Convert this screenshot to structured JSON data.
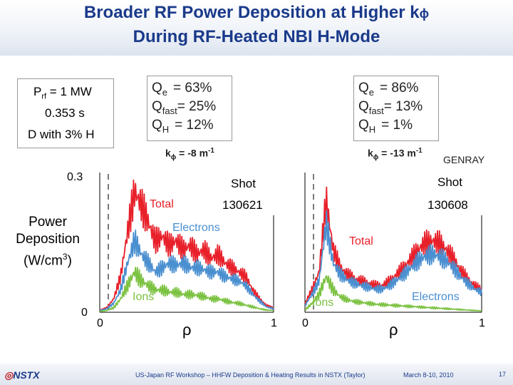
{
  "slide": {
    "title_line1": "Broader RF Power Deposition at Higher k",
    "title_phi": "ϕ",
    "title_line2": "During RF-Heated NBI H-Mode"
  },
  "params": {
    "prf_label": "P",
    "prf_sub": "rf",
    "prf_value": " = 1 MW",
    "time": "0.353 s",
    "plasma": "D with 3% H"
  },
  "panels": [
    {
      "fractions": [
        {
          "q": "Q",
          "sub": "e",
          "value": "=  63%"
        },
        {
          "q": "Q",
          "sub": "fast",
          "value": "=  25%"
        },
        {
          "q": "Q",
          "sub": "H",
          "value": "=  12%"
        }
      ],
      "kphi_label": "k",
      "kphi_sub": "ϕ",
      "kphi_value": " = -8 m",
      "kphi_exp": "-1",
      "shot_label": "Shot",
      "shot_number": "130621"
    },
    {
      "fractions": [
        {
          "q": "Q",
          "sub": "e",
          "value": "=  86%"
        },
        {
          "q": "Q",
          "sub": "fast",
          "value": "=  13%"
        },
        {
          "q": "Q",
          "sub": "H",
          "value": "=   1%"
        }
      ],
      "kphi_label": "k",
      "kphi_sub": "ϕ",
      "kphi_value": " = -13 m",
      "kphi_exp": "-1",
      "shot_label": "Shot",
      "shot_number": "130608"
    }
  ],
  "code_label": "GENRAY",
  "footer": {
    "logo": "NSTX",
    "center": "US-Japan RF Workshop – HHFW Deposition & Heating Results in NSTX (Taylor)",
    "date": "March 8-10, 2010",
    "page": "17"
  },
  "colors": {
    "title": "#1a3a8a",
    "total": "#e8202a",
    "electrons": "#4a8fd0",
    "ions": "#7cc242",
    "logo": "#c0202a"
  },
  "chart_data": [
    {
      "type": "line",
      "ylabel_lines": [
        "Power",
        "Deposition",
        "(W/cm",
        "3",
        ")"
      ],
      "xlabel": "ρ",
      "x_ticks": [
        "0",
        "1"
      ],
      "y_ticks": [
        "0",
        "0.3"
      ],
      "xlim": [
        0,
        1
      ],
      "ylim": [
        0,
        0.3
      ],
      "x": [
        0.0,
        0.04,
        0.08,
        0.12,
        0.16,
        0.2,
        0.24,
        0.28,
        0.32,
        0.36,
        0.4,
        0.44,
        0.48,
        0.52,
        0.56,
        0.6,
        0.64,
        0.68,
        0.72,
        0.76,
        0.8,
        0.84,
        0.88,
        0.92,
        0.96,
        1.0
      ],
      "series": [
        {
          "name": "Total",
          "color": "#e8202a",
          "values": [
            0.005,
            0.01,
            0.03,
            0.08,
            0.18,
            0.27,
            0.24,
            0.2,
            0.16,
            0.17,
            0.15,
            0.16,
            0.14,
            0.15,
            0.13,
            0.14,
            0.12,
            0.13,
            0.11,
            0.1,
            0.09,
            0.08,
            0.05,
            0.03,
            0.015,
            0.01
          ]
        },
        {
          "name": "Electrons",
          "color": "#4a8fd0",
          "values": [
            0.004,
            0.008,
            0.02,
            0.05,
            0.11,
            0.16,
            0.13,
            0.11,
            0.09,
            0.1,
            0.11,
            0.105,
            0.11,
            0.1,
            0.1,
            0.095,
            0.09,
            0.09,
            0.08,
            0.075,
            0.07,
            0.06,
            0.04,
            0.025,
            0.012,
            0.008
          ]
        },
        {
          "name": "Ions",
          "color": "#7cc242",
          "values": [
            0.002,
            0.004,
            0.01,
            0.03,
            0.06,
            0.09,
            0.07,
            0.06,
            0.05,
            0.05,
            0.045,
            0.045,
            0.04,
            0.04,
            0.038,
            0.035,
            0.03,
            0.03,
            0.026,
            0.022,
            0.02,
            0.016,
            0.012,
            0.008,
            0.005,
            0.004
          ]
        }
      ]
    },
    {
      "type": "line",
      "xlabel": "ρ",
      "x_ticks": [
        "0",
        "1"
      ],
      "xlim": [
        0,
        1
      ],
      "ylim": [
        0,
        0.3
      ],
      "x": [
        0.0,
        0.04,
        0.08,
        0.12,
        0.16,
        0.2,
        0.24,
        0.28,
        0.32,
        0.36,
        0.4,
        0.44,
        0.48,
        0.52,
        0.56,
        0.6,
        0.64,
        0.68,
        0.72,
        0.76,
        0.8,
        0.84,
        0.88,
        0.92,
        0.96,
        1.0
      ],
      "series": [
        {
          "name": "Total",
          "color": "#e8202a",
          "values": [
            0.02,
            0.05,
            0.09,
            0.25,
            0.14,
            0.1,
            0.085,
            0.075,
            0.07,
            0.065,
            0.06,
            0.06,
            0.07,
            0.085,
            0.1,
            0.12,
            0.14,
            0.155,
            0.16,
            0.155,
            0.14,
            0.12,
            0.095,
            0.075,
            0.06,
            0.05
          ]
        },
        {
          "name": "Electrons",
          "color": "#4a8fd0",
          "values": [
            0.015,
            0.04,
            0.07,
            0.2,
            0.11,
            0.085,
            0.072,
            0.065,
            0.06,
            0.056,
            0.052,
            0.052,
            0.06,
            0.072,
            0.085,
            0.1,
            0.115,
            0.125,
            0.13,
            0.125,
            0.115,
            0.1,
            0.08,
            0.065,
            0.052,
            0.045
          ]
        },
        {
          "name": "Ions",
          "color": "#7cc242",
          "values": [
            0.005,
            0.02,
            0.04,
            0.08,
            0.05,
            0.035,
            0.028,
            0.024,
            0.022,
            0.02,
            0.018,
            0.017,
            0.016,
            0.015,
            0.014,
            0.013,
            0.012,
            0.011,
            0.01,
            0.009,
            0.008,
            0.007,
            0.006,
            0.005,
            0.004,
            0.003
          ]
        }
      ]
    }
  ]
}
